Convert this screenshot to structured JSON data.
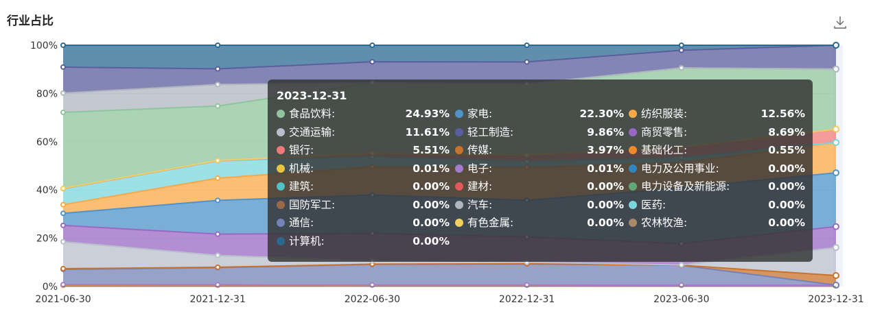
{
  "title": "行业占比",
  "download_icon": "download-icon",
  "chart_data": {
    "type": "area",
    "stacked": true,
    "percent": true,
    "x": [
      "2021-06-30",
      "2021-12-31",
      "2022-06-30",
      "2022-12-31",
      "2023-06-30",
      "2023-12-31"
    ],
    "x_tick_labels": [
      "2021-06-30",
      "2021-12-31",
      "2022-06-30",
      "2022-12-31",
      "2023-06-30",
      "2023-12-31"
    ],
    "y_ticks": [
      "0%",
      "20%",
      "40%",
      "60%",
      "80%",
      "100%"
    ],
    "ylim": [
      0,
      100
    ],
    "series": [
      {
        "name": "基础化工",
        "color": "#f0892a",
        "values": [
          0.5,
          0.5,
          0.5,
          0.5,
          0.5,
          0.55
        ]
      },
      {
        "name": "电子",
        "color": "#a37ccc",
        "values": [
          0.3,
          0.2,
          0.1,
          0.1,
          0.05,
          0.01
        ]
      },
      {
        "name": "通信",
        "color": "#7582b6",
        "values": [
          6.3,
          7.1,
          7.8,
          8.3,
          8.2,
          0
        ]
      },
      {
        "name": "传媒",
        "color": "#c8722c",
        "values": [
          0.3,
          0.2,
          0.1,
          0.1,
          0.05,
          3.97
        ]
      },
      {
        "name": "交通运输",
        "color": "#b8bfcc",
        "values": [
          11.2,
          4.9,
          1.2,
          0.6,
          0.1,
          11.61
        ]
      },
      {
        "name": "商贸零售",
        "color": "#9a68c4",
        "values": [
          6.8,
          8.8,
          10.5,
          10.0,
          8.8,
          8.69
        ]
      },
      {
        "name": "家电",
        "color": "#4f93c8",
        "values": [
          5,
          14,
          14.6,
          14.5,
          23,
          22.3
        ]
      },
      {
        "name": "纺织服装",
        "color": "#f8a847",
        "values": [
          3.6,
          9.2,
          10.7,
          13.0,
          10.5,
          12.56
        ]
      },
      {
        "name": "医药",
        "color": "#79d7dd",
        "values": [
          6.7,
          7.2,
          3.8,
          2.4,
          2.1,
          0
        ]
      },
      {
        "name": "银行",
        "color": "#f07a7a",
        "values": [
          0,
          0,
          1.3,
          2.4,
          4.2,
          5.51
        ]
      },
      {
        "name": "有色金属",
        "color": "#f0d060",
        "values": [
          0.1,
          0.1,
          0.1,
          0.1,
          0.1,
          0
        ]
      },
      {
        "name": "食品饮料",
        "color": "#8fc49c",
        "values": [
          31.6,
          22.6,
          26.8,
          28.1,
          32.8,
          24.93
        ]
      },
      {
        "name": "汽车",
        "color": "#b0b6c0",
        "values": [
          8,
          8.9,
          0,
          0,
          0,
          0
        ]
      },
      {
        "name": "轻工制造",
        "color": "#5a5e9c",
        "values": [
          10.8,
          6.5,
          8.0,
          8.8,
          7.3,
          9.86
        ]
      },
      {
        "name": "计算机",
        "color": "#2a6a90",
        "values": [
          9.1,
          9.8,
          6.3,
          6.6,
          2.1,
          0
        ]
      }
    ]
  },
  "tooltip": {
    "date": "2023-12-31",
    "items": [
      {
        "name": "食品饮料:",
        "value": "24.93%",
        "color": "#8fc49c"
      },
      {
        "name": "家电:",
        "value": "22.30%",
        "color": "#4f93c8"
      },
      {
        "name": "纺织服装:",
        "value": "12.56%",
        "color": "#f8a847"
      },
      {
        "name": "交通运输:",
        "value": "11.61%",
        "color": "#b8bfcc"
      },
      {
        "name": "轻工制造:",
        "value": "9.86%",
        "color": "#5a5e9c"
      },
      {
        "name": "商贸零售:",
        "value": "8.69%",
        "color": "#9a68c4"
      },
      {
        "name": "银行:",
        "value": "5.51%",
        "color": "#f07a7a"
      },
      {
        "name": "传媒:",
        "value": "3.97%",
        "color": "#c8722c"
      },
      {
        "name": "基础化工:",
        "value": "0.55%",
        "color": "#f0892a"
      },
      {
        "name": "机械:",
        "value": "0.01%",
        "color": "#e8c440"
      },
      {
        "name": "电子:",
        "value": "0.01%",
        "color": "#a37ccc"
      },
      {
        "name": "电力及公用事业:",
        "value": "0.00%",
        "color": "#2f86c0"
      },
      {
        "name": "建筑:",
        "value": "0.00%",
        "color": "#52c0c4"
      },
      {
        "name": "建材:",
        "value": "0.00%",
        "color": "#e05a5a"
      },
      {
        "name": "电力设备及新能源:",
        "value": "0.00%",
        "color": "#5fa878"
      },
      {
        "name": "国防军工:",
        "value": "0.00%",
        "color": "#9a6a48"
      },
      {
        "name": "汽车:",
        "value": "0.00%",
        "color": "#b0b6c0"
      },
      {
        "name": "医药:",
        "value": "0.00%",
        "color": "#79d7dd"
      },
      {
        "name": "通信:",
        "value": "0.00%",
        "color": "#7582b6"
      },
      {
        "name": "有色金属:",
        "value": "0.00%",
        "color": "#f0d060"
      },
      {
        "name": "农林牧渔:",
        "value": "0.00%",
        "color": "#a88a6a"
      },
      {
        "name": "计算机:",
        "value": "0.00%",
        "color": "#2a6a90"
      }
    ]
  }
}
